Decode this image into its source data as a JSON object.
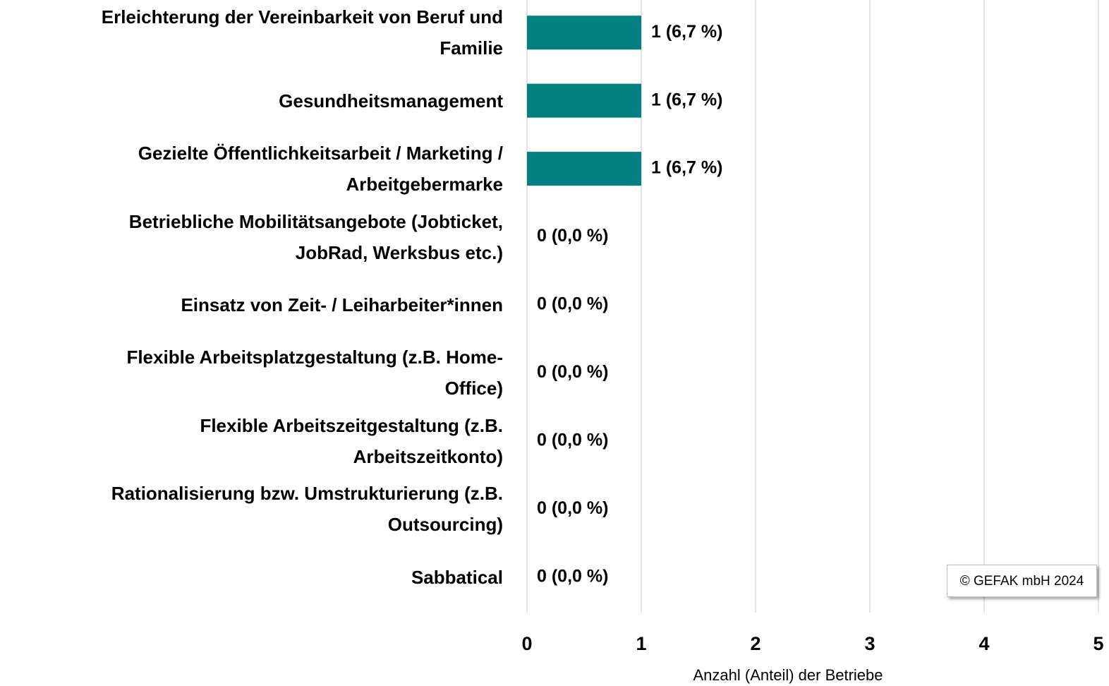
{
  "chart_data": {
    "type": "barh",
    "categories": [
      "Erleichterung der Vereinbarkeit von Beruf und\nFamilie",
      "Gesundheitsmanagement",
      "Gezielte Öffentlichkeitsarbeit / Marketing /\nArbeitgebermarke",
      "Betriebliche Mobilitätsangebote (Jobticket,\nJobRad, Werksbus etc.)",
      "Einsatz von Zeit- / Leiharbeiter*innen",
      "Flexible Arbeitsplatzgestaltung (z.B. Home-\nOffice)",
      "Flexible Arbeitszeitgestaltung (z.B.\nArbeitszeitkonto)",
      "Rationalisierung bzw. Umstrukturierung (z.B.\nOutsourcing)",
      "Sabbatical"
    ],
    "values": [
      1,
      1,
      1,
      0,
      0,
      0,
      0,
      0,
      0
    ],
    "value_labels": [
      "1 (6,7 %)",
      "1 (6,7 %)",
      "1 (6,7 %)",
      "0 (0,0 %)",
      "0 (0,0 %)",
      "0 (0,0 %)",
      "0 (0,0 %)",
      "0 (0,0 %)",
      "0 (0,0 %)"
    ],
    "color": "#008080",
    "xlim": [
      0,
      5
    ],
    "xticks": [
      0,
      1,
      2,
      3,
      4,
      5
    ],
    "grid": true,
    "xlabel": "Anzahl (Anteil) der Betriebe",
    "annotation": "© GEFAK mbH 2024"
  }
}
